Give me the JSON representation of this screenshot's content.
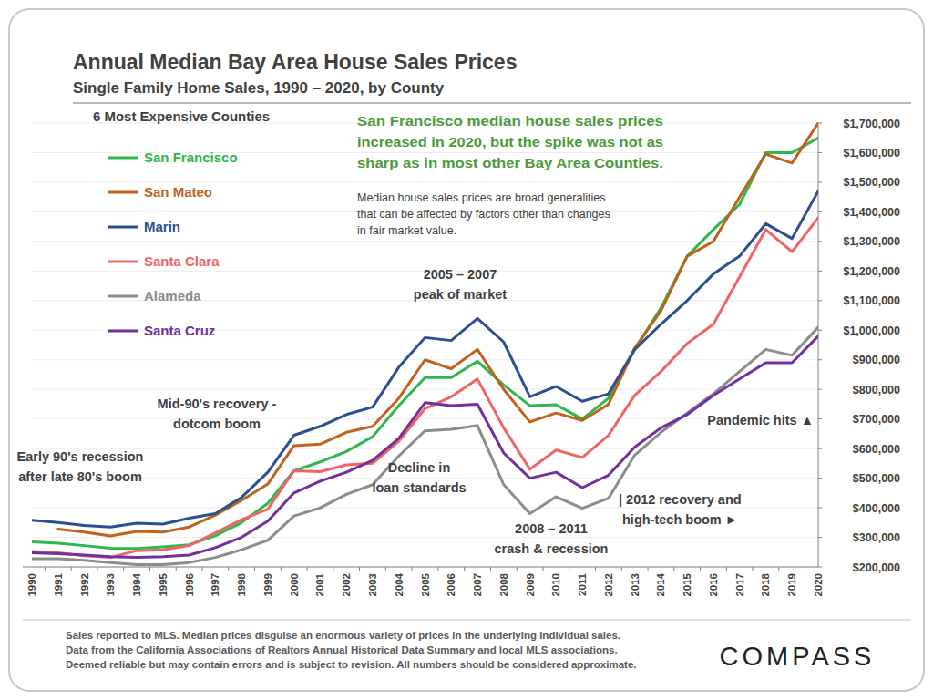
{
  "chart_data": {
    "type": "line",
    "title": "Annual Median Bay Area House Sales Prices",
    "subtitle": "Single Family Home Sales, 1990 – 2020, by County",
    "legend_title": "6 Most Expensive Counties",
    "legend": "top-left",
    "grid": true,
    "categories": [
      "1990",
      "1991",
      "1992",
      "1993",
      "1994",
      "1995",
      "1996",
      "1997",
      "1998",
      "1999",
      "2000",
      "2001",
      "2002",
      "2003",
      "2004",
      "2005",
      "2006",
      "2007",
      "2008",
      "2009",
      "2010",
      "2011",
      "2012",
      "2013",
      "2014",
      "2015",
      "2016",
      "2017",
      "2018",
      "2019",
      "2020"
    ],
    "ylim": [
      200000,
      1700000
    ],
    "yticks": [
      {
        "value": 200000,
        "label": "$200,000"
      },
      {
        "value": 300000,
        "label": "$300,000"
      },
      {
        "value": 400000,
        "label": "$400,000"
      },
      {
        "value": 500000,
        "label": "$500,000"
      },
      {
        "value": 600000,
        "label": "$600,000"
      },
      {
        "value": 700000,
        "label": "$700,000"
      },
      {
        "value": 800000,
        "label": "$800,000"
      },
      {
        "value": 900000,
        "label": "$900,000"
      },
      {
        "value": 1000000,
        "label": "$1,000,000"
      },
      {
        "value": 1100000,
        "label": "$1,100,000"
      },
      {
        "value": 1200000,
        "label": "$1,200,000"
      },
      {
        "value": 1300000,
        "label": "$1,300,000"
      },
      {
        "value": 1400000,
        "label": "$1,400,000"
      },
      {
        "value": 1500000,
        "label": "$1,500,000"
      },
      {
        "value": 1600000,
        "label": "$1,600,000"
      },
      {
        "value": 1700000,
        "label": "$1,700,000"
      }
    ],
    "series": [
      {
        "name": "San Francisco",
        "color": "#2db84d",
        "values": [
          285000,
          280000,
          272000,
          263000,
          262000,
          268000,
          275000,
          305000,
          350000,
          415000,
          525000,
          555000,
          590000,
          640000,
          745000,
          840000,
          840000,
          895000,
          815000,
          745000,
          748000,
          700000,
          770000,
          935000,
          1075000,
          1250000,
          1340000,
          1425000,
          1600000,
          1600000,
          1650000
        ]
      },
      {
        "name": "San Mateo",
        "color": "#c0621b",
        "values": [
          null,
          328000,
          318000,
          305000,
          320000,
          318000,
          335000,
          375000,
          425000,
          480000,
          610000,
          615000,
          655000,
          675000,
          770000,
          900000,
          870000,
          935000,
          800000,
          690000,
          720000,
          695000,
          750000,
          940000,
          1065000,
          1250000,
          1300000,
          1450000,
          1595000,
          1565000,
          1700000
        ]
      },
      {
        "name": "Marin",
        "color": "#2e4f8f",
        "values": [
          358000,
          350000,
          340000,
          335000,
          348000,
          345000,
          365000,
          380000,
          435000,
          520000,
          645000,
          675000,
          715000,
          740000,
          875000,
          975000,
          965000,
          1040000,
          960000,
          775000,
          810000,
          760000,
          785000,
          935000,
          1020000,
          1100000,
          1190000,
          1250000,
          1360000,
          1310000,
          1470000
        ]
      },
      {
        "name": "Santa Clara",
        "color": "#f06464",
        "values": [
          252000,
          248000,
          238000,
          232000,
          255000,
          258000,
          272000,
          315000,
          360000,
          395000,
          525000,
          522000,
          545000,
          550000,
          625000,
          735000,
          775000,
          835000,
          670000,
          530000,
          595000,
          570000,
          645000,
          780000,
          860000,
          955000,
          1020000,
          1180000,
          1340000,
          1265000,
          1380000
        ]
      },
      {
        "name": "Alameda",
        "color": "#8c8c8c",
        "values": [
          228000,
          228000,
          222000,
          215000,
          208000,
          208000,
          215000,
          232000,
          258000,
          290000,
          372000,
          400000,
          445000,
          478000,
          575000,
          660000,
          665000,
          678000,
          478000,
          380000,
          437000,
          398000,
          432000,
          578000,
          655000,
          720000,
          785000,
          860000,
          935000,
          915000,
          1010000
        ]
      },
      {
        "name": "Santa Cruz",
        "color": "#7030a0",
        "values": [
          248000,
          245000,
          240000,
          235000,
          232000,
          235000,
          240000,
          265000,
          300000,
          355000,
          450000,
          490000,
          520000,
          560000,
          635000,
          755000,
          745000,
          750000,
          585000,
          500000,
          520000,
          468000,
          510000,
          605000,
          670000,
          715000,
          780000,
          835000,
          890000,
          890000,
          980000
        ]
      }
    ],
    "highlight": [
      "San Francisco median house sales prices",
      "increased in 2020, but the spike was not as",
      "sharp as in most other Bay Area Counties."
    ],
    "note": [
      "Median house sales prices are broad generalities",
      "that can be affected by factors other than changes",
      "in fair market value."
    ],
    "annotations": [
      [
        "2005 – 2007",
        "peak of market"
      ],
      [
        "Mid-90's recovery -",
        "dotcom boom"
      ],
      [
        "Early 90's recession",
        "after late 80's boom"
      ],
      [
        "Decline in",
        "loan standards"
      ],
      [
        "2008 – 2011",
        "crash & recession"
      ],
      [
        "| 2012 recovery and",
        "high-tech boom ►"
      ],
      [
        "Pandemic hits ▲"
      ]
    ],
    "footer": [
      "Sales reported to MLS. Median prices disguise an enormous variety of prices in the underlying individual sales.",
      "Data from the California Associations of Realtors Annual Historical Data Summary and local MLS associations.",
      "Deemed reliable but may contain errors and is subject to revision. All numbers should be considered approximate."
    ],
    "logo": "COMPASS"
  }
}
